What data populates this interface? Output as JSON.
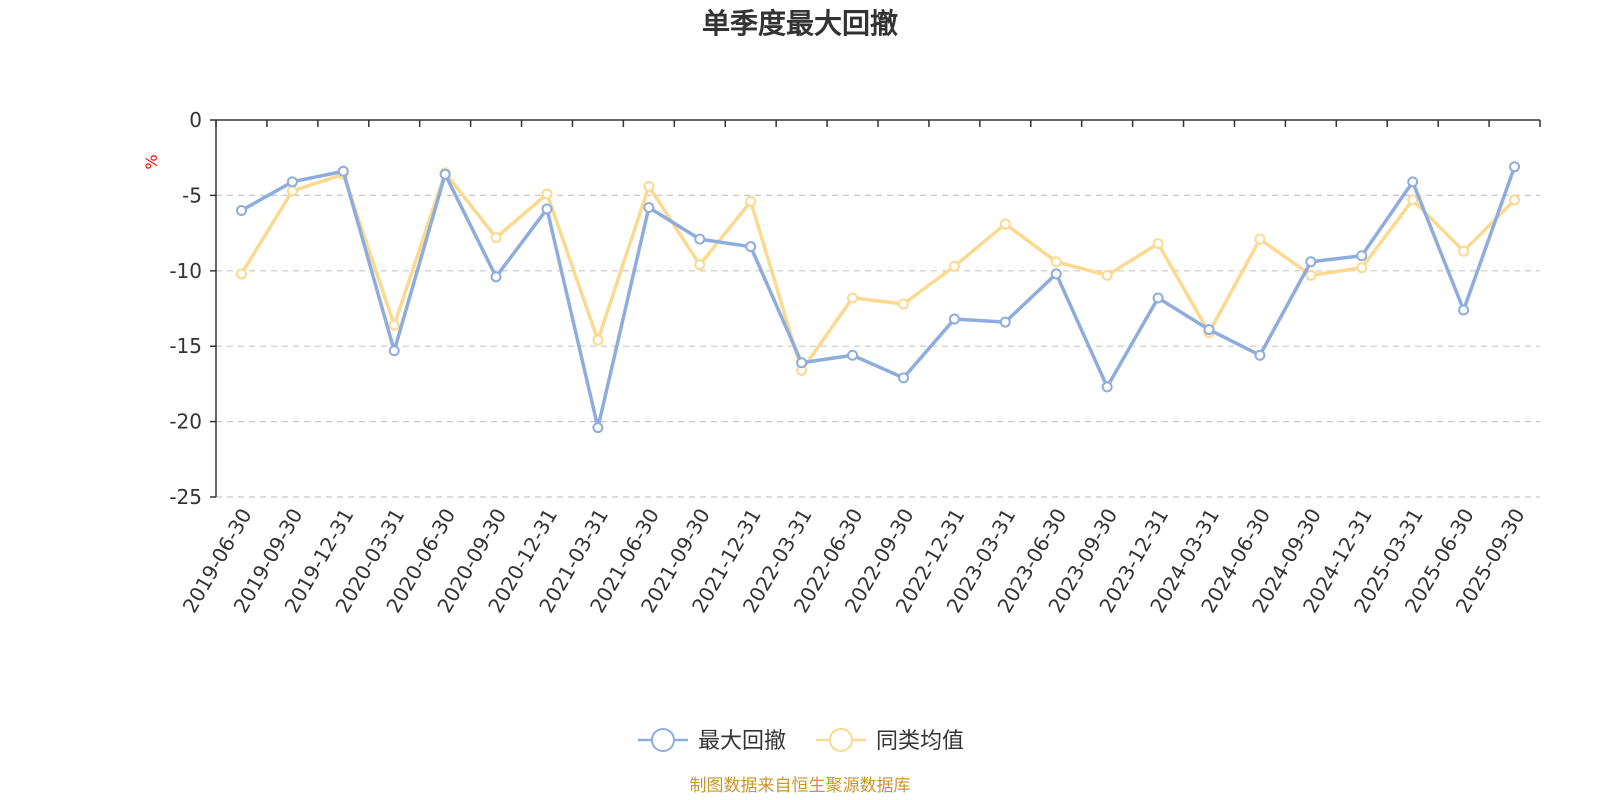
{
  "colors": {
    "series_max_drawdown": "#8eacdc",
    "series_peer_avg": "#fbd98f",
    "axis": "#333333",
    "grid": "#c8c8c8",
    "unit": "#ff0000",
    "source": "#c8962d"
  },
  "chart_data": {
    "type": "line",
    "title": "单季度最大回撤",
    "ylabel": "%",
    "xlabel": "",
    "ylim": [
      -25,
      0
    ],
    "yticks": [
      "0",
      "-5",
      "-10",
      "-15",
      "-20",
      "-25"
    ],
    "grid": true,
    "legend_position": "bottom-center",
    "categories": [
      "2019-06-30",
      "2019-09-30",
      "2019-12-31",
      "2020-03-31",
      "2020-06-30",
      "2020-09-30",
      "2020-12-31",
      "2021-03-31",
      "2021-06-30",
      "2021-09-30",
      "2021-12-31",
      "2022-03-31",
      "2022-06-30",
      "2022-09-30",
      "2022-12-31",
      "2023-03-31",
      "2023-06-30",
      "2023-09-30",
      "2023-12-31",
      "2024-03-31",
      "2024-06-30",
      "2024-09-30",
      "2024-12-31",
      "2025-03-31",
      "2025-06-30",
      "2025-09-30"
    ],
    "series": [
      {
        "name": "最大回撤",
        "values": [
          -6.0,
          -4.1,
          -3.4,
          -15.3,
          -3.6,
          -10.4,
          -5.9,
          -20.4,
          -5.8,
          -7.9,
          -8.4,
          -16.1,
          -15.6,
          -17.1,
          -13.2,
          -13.4,
          -10.2,
          -17.7,
          -11.8,
          -13.9,
          -15.6,
          -9.4,
          -9.0,
          -4.1,
          -12.6,
          -3.1
        ]
      },
      {
        "name": "同类均值",
        "values": [
          -10.2,
          -4.7,
          -3.6,
          -13.6,
          -3.5,
          -7.8,
          -4.9,
          -14.6,
          -4.4,
          -9.6,
          -5.4,
          -16.6,
          -11.8,
          -12.2,
          -9.7,
          -6.9,
          -9.4,
          -10.3,
          -8.2,
          -14.1,
          -7.9,
          -10.3,
          -9.8,
          -5.3,
          -8.7,
          -5.3
        ]
      }
    ]
  },
  "legend": {
    "items": [
      "最大回撤",
      "同类均值"
    ]
  },
  "footer": {
    "source": "制图数据来自恒生聚源数据库"
  }
}
